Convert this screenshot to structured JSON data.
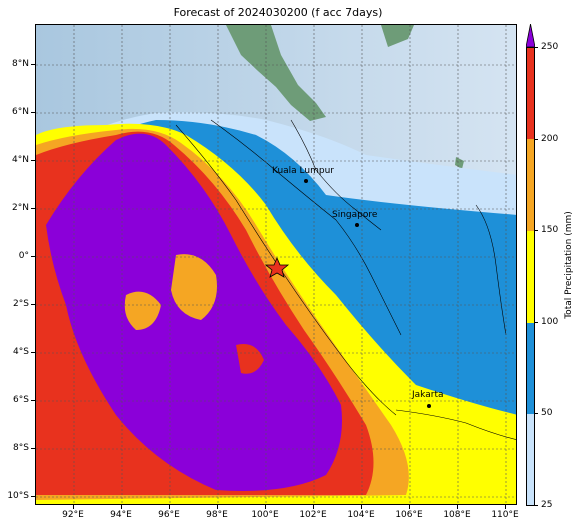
{
  "title": "Forecast of 2024030200 (f acc 7days)",
  "lat_labels": [
    "8°N",
    "6°N",
    "4°N",
    "2°N",
    "0°",
    "2°S",
    "4°S",
    "6°S",
    "8°S",
    "10°S"
  ],
  "lon_labels": [
    "92°E",
    "94°E",
    "96°E",
    "98°E",
    "100°E",
    "102°E",
    "104°E",
    "106°E",
    "108°E",
    "110°E"
  ],
  "colorbar": {
    "title": "Total Precipitation (mm)",
    "tick_labels": [
      "25",
      "50",
      "100",
      "150",
      "200",
      "250"
    ],
    "colors": [
      "#c9e3fb",
      "#1e90d8",
      "#ffff00",
      "#f5a623",
      "#e8321e",
      "#8b00d9"
    ]
  },
  "cities": [
    {
      "name": "Kuala Lumpur"
    },
    {
      "name": "Singapore"
    },
    {
      "name": "Jakarta"
    }
  ],
  "colors": {
    "sea": "#b9d4ea",
    "land": "#6e9c78",
    "light_blue": "#c9e3fb",
    "blue": "#1e90d8",
    "yellow": "#ffff00",
    "orange": "#f5a623",
    "red": "#e8321e",
    "purple": "#8b00d9"
  }
}
